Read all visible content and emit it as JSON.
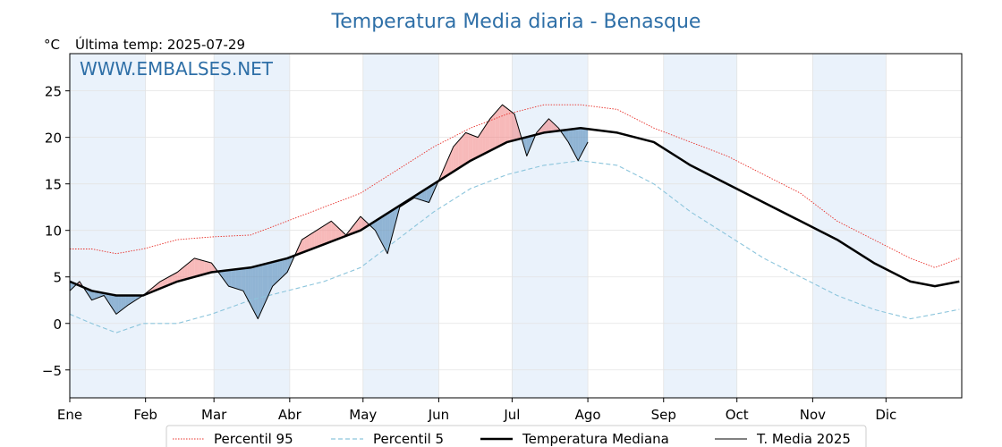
{
  "chart_data": {
    "type": "line",
    "title": "Temperatura Media diaria - Benasque",
    "unit_label": "°C",
    "last_temp_label": "Última temp: 2025-07-29",
    "watermark": "WWW.EMBALSES.NET",
    "ylim": [
      -8,
      29
    ],
    "yticks": [
      -5,
      0,
      5,
      10,
      15,
      20,
      25
    ],
    "ytick_labels": [
      "−5",
      "0",
      "5",
      "10",
      "15",
      "20",
      "25"
    ],
    "months": [
      "Ene",
      "Feb",
      "Mar",
      "Abr",
      "May",
      "Jun",
      "Jul",
      "Ago",
      "Sep",
      "Oct",
      "Nov",
      "Dic"
    ],
    "month_start_days": [
      1,
      32,
      60,
      91,
      121,
      152,
      182,
      213,
      244,
      274,
      305,
      335
    ],
    "grid": true,
    "legend_position": "bottom",
    "colors": {
      "p95": "#e8302a",
      "p5": "#8cc5dc",
      "median": "#000000",
      "current": "#000000",
      "above": "#f08080",
      "below": "#4682b4",
      "title": "#2e6fa7",
      "band": "#eaf2fb"
    },
    "series": [
      {
        "name": "Percentil 95",
        "key": "p95",
        "style": "dotted",
        "points": [
          [
            1,
            8
          ],
          [
            10,
            8
          ],
          [
            20,
            7.5
          ],
          [
            31,
            8
          ],
          [
            45,
            9
          ],
          [
            59,
            9.3
          ],
          [
            75,
            9.5
          ],
          [
            90,
            11
          ],
          [
            105,
            12.5
          ],
          [
            120,
            14
          ],
          [
            135,
            16.5
          ],
          [
            150,
            19
          ],
          [
            165,
            21
          ],
          [
            180,
            22.5
          ],
          [
            195,
            23.5
          ],
          [
            210,
            23.5
          ],
          [
            225,
            23
          ],
          [
            240,
            21
          ],
          [
            255,
            19.5
          ],
          [
            270,
            18
          ],
          [
            285,
            16
          ],
          [
            300,
            14
          ],
          [
            315,
            11
          ],
          [
            330,
            9
          ],
          [
            345,
            7
          ],
          [
            355,
            6
          ],
          [
            365,
            7
          ]
        ]
      },
      {
        "name": "Percentil 5",
        "key": "p5",
        "style": "dashed",
        "points": [
          [
            1,
            1
          ],
          [
            10,
            0
          ],
          [
            20,
            -1
          ],
          [
            31,
            0
          ],
          [
            45,
            0
          ],
          [
            59,
            1
          ],
          [
            75,
            2.5
          ],
          [
            90,
            3.5
          ],
          [
            105,
            4.5
          ],
          [
            120,
            6
          ],
          [
            135,
            9
          ],
          [
            150,
            12
          ],
          [
            165,
            14.5
          ],
          [
            180,
            16
          ],
          [
            195,
            17
          ],
          [
            210,
            17.5
          ],
          [
            225,
            17
          ],
          [
            240,
            15
          ],
          [
            255,
            12
          ],
          [
            270,
            9.5
          ],
          [
            285,
            7
          ],
          [
            300,
            5
          ],
          [
            315,
            3
          ],
          [
            330,
            1.5
          ],
          [
            345,
            0.5
          ],
          [
            355,
            1
          ],
          [
            365,
            1.5
          ]
        ]
      },
      {
        "name": "Temperatura Mediana",
        "key": "median",
        "style": "solid-thick",
        "points": [
          [
            1,
            4.5
          ],
          [
            10,
            3.5
          ],
          [
            20,
            3
          ],
          [
            31,
            3
          ],
          [
            45,
            4.5
          ],
          [
            59,
            5.5
          ],
          [
            75,
            6
          ],
          [
            90,
            7
          ],
          [
            105,
            8.5
          ],
          [
            120,
            10
          ],
          [
            135,
            12.5
          ],
          [
            150,
            15
          ],
          [
            165,
            17.5
          ],
          [
            180,
            19.5
          ],
          [
            195,
            20.5
          ],
          [
            210,
            21
          ],
          [
            225,
            20.5
          ],
          [
            240,
            19.5
          ],
          [
            255,
            17
          ],
          [
            270,
            15
          ],
          [
            285,
            13
          ],
          [
            300,
            11
          ],
          [
            315,
            9
          ],
          [
            330,
            6.5
          ],
          [
            345,
            4.5
          ],
          [
            355,
            4
          ],
          [
            365,
            4.5
          ]
        ]
      },
      {
        "name": "T. Media 2025",
        "key": "current",
        "style": "solid-thin",
        "points": [
          [
            1,
            3.5
          ],
          [
            5,
            4.5
          ],
          [
            10,
            2.5
          ],
          [
            15,
            3
          ],
          [
            20,
            1
          ],
          [
            25,
            2
          ],
          [
            31,
            3
          ],
          [
            38,
            4.5
          ],
          [
            45,
            5.5
          ],
          [
            52,
            7
          ],
          [
            59,
            6.5
          ],
          [
            66,
            4
          ],
          [
            72,
            3.5
          ],
          [
            78,
            0.5
          ],
          [
            84,
            4
          ],
          [
            90,
            5.5
          ],
          [
            96,
            9
          ],
          [
            102,
            10
          ],
          [
            108,
            11
          ],
          [
            114,
            9.5
          ],
          [
            120,
            11.5
          ],
          [
            126,
            10
          ],
          [
            131,
            7.5
          ],
          [
            136,
            12.5
          ],
          [
            142,
            13.5
          ],
          [
            148,
            13
          ],
          [
            153,
            16
          ],
          [
            158,
            19
          ],
          [
            163,
            20.5
          ],
          [
            168,
            20
          ],
          [
            173,
            22
          ],
          [
            178,
            23.5
          ],
          [
            183,
            22.5
          ],
          [
            188,
            18
          ],
          [
            192,
            20.5
          ],
          [
            197,
            22
          ],
          [
            201,
            21
          ],
          [
            205,
            19.5
          ],
          [
            209,
            17.5
          ],
          [
            213,
            19.5
          ]
        ]
      }
    ]
  }
}
